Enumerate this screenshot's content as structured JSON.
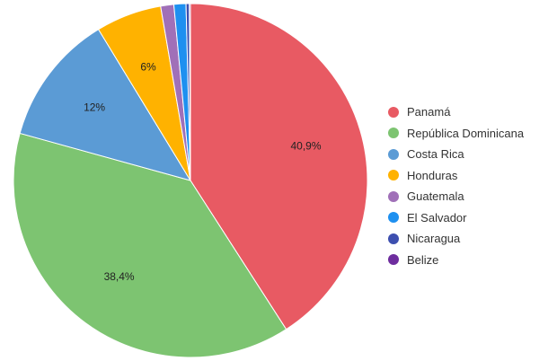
{
  "chart_data": {
    "type": "pie",
    "title": "",
    "legend_position": "right",
    "start_angle_deg": 0,
    "direction": "clockwise",
    "slices": [
      {
        "name": "Panamá",
        "value": 40.9,
        "label": "40,9%",
        "color": "#E85A63"
      },
      {
        "name": "República Dominicana",
        "value": 38.4,
        "label": "38,4%",
        "color": "#7DC471"
      },
      {
        "name": "Costa Rica",
        "value": 12,
        "label": "12%",
        "color": "#5B9BD5"
      },
      {
        "name": "Honduras",
        "value": 6,
        "label": "6%",
        "color": "#FFB200"
      },
      {
        "name": "Guatemala",
        "value": 1.2,
        "label": "",
        "color": "#A070B8"
      },
      {
        "name": "El Salvador",
        "value": 1.1,
        "label": "",
        "color": "#1E90F0"
      },
      {
        "name": "Nicaragua",
        "value": 0.3,
        "label": "",
        "color": "#3D4FAF"
      },
      {
        "name": "Belize",
        "value": 0.1,
        "label": "",
        "color": "#6E2D9E"
      }
    ]
  }
}
